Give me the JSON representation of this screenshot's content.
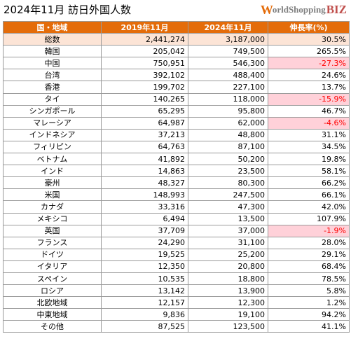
{
  "title": "2024年11月 訪日外国人数",
  "logo": {
    "w": "W",
    "mid": "orldShopping",
    "biz": "BIZ"
  },
  "headers": [
    "国・地域",
    "2019年11月",
    "2024年11月",
    "伸長率(%)"
  ],
  "rows": [
    {
      "name": "総数",
      "y2019": "2,441,274",
      "y2024": "3,187,000",
      "growth": "30.5%",
      "total": true
    },
    {
      "name": "韓国",
      "y2019": "205,042",
      "y2024": "749,500",
      "growth": "265.5%"
    },
    {
      "name": "中国",
      "y2019": "750,951",
      "y2024": "546,300",
      "growth": "-27.3%",
      "negative": true
    },
    {
      "name": "台湾",
      "y2019": "392,102",
      "y2024": "488,400",
      "growth": "24.6%"
    },
    {
      "name": "香港",
      "y2019": "199,702",
      "y2024": "227,100",
      "growth": "13.7%"
    },
    {
      "name": "タイ",
      "y2019": "140,265",
      "y2024": "118,000",
      "growth": "-15.9%",
      "negative": true
    },
    {
      "name": "シンガポール",
      "y2019": "65,295",
      "y2024": "95,800",
      "growth": "46.7%"
    },
    {
      "name": "マレーシア",
      "y2019": "64,987",
      "y2024": "62,000",
      "growth": "-4.6%",
      "negative": true
    },
    {
      "name": "インドネシア",
      "y2019": "37,213",
      "y2024": "48,800",
      "growth": "31.1%"
    },
    {
      "name": "フィリピン",
      "y2019": "64,763",
      "y2024": "87,100",
      "growth": "34.5%"
    },
    {
      "name": "ベトナム",
      "y2019": "41,892",
      "y2024": "50,200",
      "growth": "19.8%"
    },
    {
      "name": "インド",
      "y2019": "14,863",
      "y2024": "23,500",
      "growth": "58.1%"
    },
    {
      "name": "豪州",
      "y2019": "48,327",
      "y2024": "80,300",
      "growth": "66.2%"
    },
    {
      "name": "米国",
      "y2019": "148,993",
      "y2024": "247,500",
      "growth": "66.1%"
    },
    {
      "name": "カナダ",
      "y2019": "33,316",
      "y2024": "47,300",
      "growth": "42.0%"
    },
    {
      "name": "メキシコ",
      "y2019": "6,494",
      "y2024": "13,500",
      "growth": "107.9%"
    },
    {
      "name": "英国",
      "y2019": "37,709",
      "y2024": "37,000",
      "growth": "-1.9%",
      "negative": true
    },
    {
      "name": "フランス",
      "y2019": "24,290",
      "y2024": "31,100",
      "growth": "28.0%"
    },
    {
      "name": "ドイツ",
      "y2019": "19,525",
      "y2024": "25,200",
      "growth": "29.1%"
    },
    {
      "name": "イタリア",
      "y2019": "12,350",
      "y2024": "20,800",
      "growth": "68.4%"
    },
    {
      "name": "スペイン",
      "y2019": "10,535",
      "y2024": "18,800",
      "growth": "78.5%"
    },
    {
      "name": "ロシア",
      "y2019": "13,142",
      "y2024": "13,900",
      "growth": "5.8%"
    },
    {
      "name": "北欧地域",
      "y2019": "12,157",
      "y2024": "12,300",
      "growth": "1.2%"
    },
    {
      "name": "中東地域",
      "y2019": "9,836",
      "y2024": "19,100",
      "growth": "94.2%"
    },
    {
      "name": "その他",
      "y2019": "87,525",
      "y2024": "123,500",
      "growth": "41.1%"
    }
  ],
  "colors": {
    "header": "#e46c0a",
    "total_row": "#fce4d6",
    "negative_fill": "#ffd1d9",
    "negative_text": "#ff0000"
  }
}
